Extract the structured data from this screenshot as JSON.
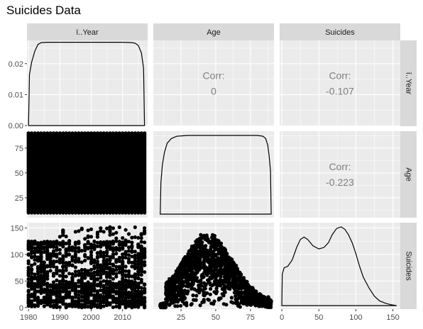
{
  "chart_data": {
    "type": "scatter-matrix",
    "title": "Suicides Data",
    "variables": [
      "ï..Year",
      "Age",
      "Suicides"
    ],
    "ranges": {
      "ï..Year": [
        1979.5,
        2018
      ],
      "Age": [
        5,
        92
      ],
      "Suicides": [
        -3,
        160
      ]
    },
    "ticks": {
      "ï..Year": [
        1980,
        1990,
        2000,
        2010
      ],
      "Age": [
        25,
        50,
        75
      ],
      "Suicides": [
        0,
        50,
        100,
        150
      ]
    },
    "left_ticks": {
      "row0": {
        "values": [
          0.0,
          0.01,
          0.02
        ],
        "labels": [
          "0.00",
          "0.01",
          "0.02"
        ],
        "ylim": [
          -0.0002,
          0.0275
        ]
      },
      "row1": {
        "values": [
          25,
          50,
          75
        ],
        "labels": [
          "25",
          "50",
          "75"
        ]
      },
      "row2": {
        "values": [
          0,
          50,
          100,
          150
        ],
        "labels": [
          "0",
          "50",
          "100",
          "150"
        ]
      }
    },
    "correlations": [
      {
        "row": "ï..Year",
        "col": "Age",
        "label": "Corr:",
        "value": "0"
      },
      {
        "row": "ï..Year",
        "col": "Suicides",
        "label": "Corr:",
        "value": "-0.107"
      },
      {
        "row": "Age",
        "col": "Suicides",
        "label": "Corr:",
        "value": "-0.223"
      }
    ],
    "densities": {
      "ï..Year": {
        "x": [
          1980,
          1980.3,
          1981,
          1982,
          1983,
          1984,
          1986,
          1990,
          2000,
          2010,
          2013,
          2014,
          2015,
          2016,
          2016.7,
          2017
        ],
        "y": [
          0,
          0.0165,
          0.0205,
          0.024,
          0.0262,
          0.0268,
          0.0269,
          0.0269,
          0.0269,
          0.0269,
          0.0268,
          0.0266,
          0.0259,
          0.0235,
          0.0185,
          0
        ]
      },
      "Age": {
        "x": [
          10,
          10.5,
          11.5,
          13,
          15,
          18,
          22,
          30,
          50,
          80,
          84,
          86,
          87.5,
          88.5,
          89.5,
          90
        ],
        "y": [
          0,
          0.4,
          0.62,
          0.78,
          0.9,
          0.96,
          0.99,
          1.0,
          1.0,
          1.0,
          0.99,
          0.96,
          0.88,
          0.74,
          0.55,
          0
        ]
      },
      "Suicides": {
        "x": [
          0,
          0.5,
          3,
          8,
          14,
          20,
          25,
          30,
          35,
          42,
          50,
          57,
          63,
          68,
          74,
          80,
          85,
          90,
          95,
          100,
          105,
          110,
          118,
          125,
          132,
          140,
          148,
          155
        ],
        "y": [
          0,
          0.4,
          0.48,
          0.5,
          0.58,
          0.74,
          0.84,
          0.87,
          0.84,
          0.76,
          0.72,
          0.74,
          0.8,
          0.9,
          0.98,
          1.0,
          0.97,
          0.9,
          0.8,
          0.66,
          0.5,
          0.36,
          0.22,
          0.12,
          0.06,
          0.03,
          0.01,
          0
        ]
      }
    },
    "scatter_pairs": [
      {
        "x": "ï..Year",
        "y": "Age",
        "description": "dense grid covering all years and ages"
      },
      {
        "x": "ï..Year",
        "y": "Suicides"
      },
      {
        "x": "Age",
        "y": "Suicides"
      }
    ],
    "colors": {
      "panel_bg": "#ebebeb",
      "strip_bg": "#d9d9d9",
      "grid": "#ffffff",
      "marks": "#000000",
      "corr_text": "#7f7f7f"
    }
  }
}
